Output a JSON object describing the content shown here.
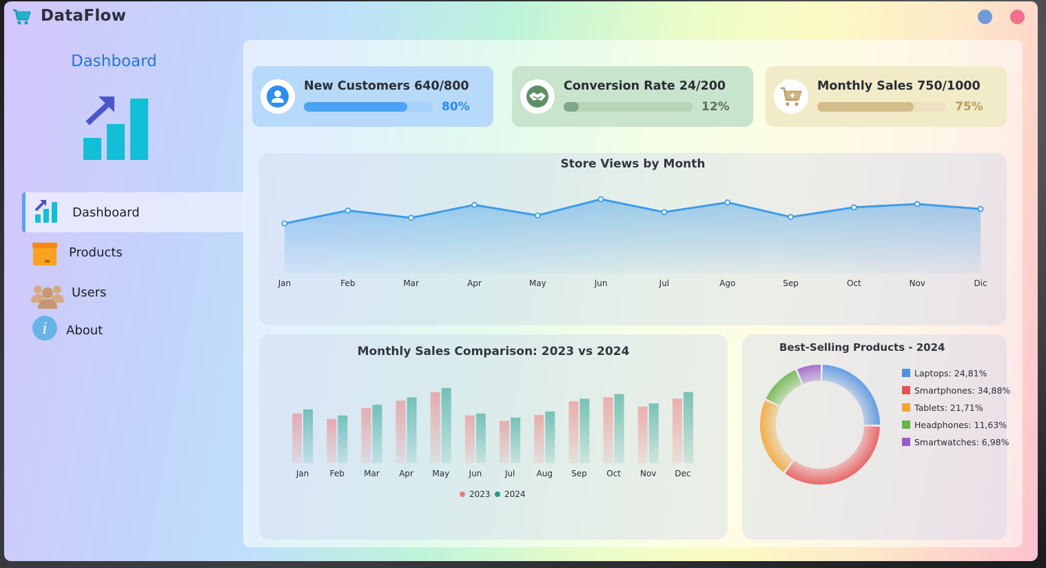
{
  "app": {
    "title": "DataFlow",
    "logo_icon": "cart-icon"
  },
  "sidebar": {
    "heading": "Dashboard",
    "hero_icon": "growth-chart-icon",
    "items": [
      {
        "label": "Dashboard",
        "icon": "chart-icon",
        "active": true
      },
      {
        "label": "Products",
        "icon": "box-icon",
        "active": false
      },
      {
        "label": "Users",
        "icon": "users-icon",
        "active": false
      },
      {
        "label": "About",
        "icon": "info-icon",
        "active": false
      }
    ]
  },
  "kpis": [
    {
      "title": "New Customers 640/800",
      "percent_label": "80%",
      "progress": 0.8,
      "icon": "user-icon",
      "card_color": "#b7d9fa",
      "track_color": "#a8d2fb",
      "fill_color": "#4aa3f4",
      "text_color": "#2b8be8"
    },
    {
      "title": "Conversion Rate 24/200",
      "percent_label": "12%",
      "progress": 0.12,
      "icon": "handshake-icon",
      "card_color": "#c8e4cc",
      "track_color": "#b5d4b8",
      "fill_color": "#7fa686",
      "text_color": "#5a6f5d"
    },
    {
      "title": "Monthly Sales 750/1000",
      "percent_label": "75%",
      "progress": 0.75,
      "icon": "cart-plus-icon",
      "card_color": "#f2ebc8",
      "track_color": "#eee0c0",
      "fill_color": "#d2bd8a",
      "text_color": "#b99b5b"
    }
  ],
  "chart_data": [
    {
      "type": "area",
      "title": "Store Views by Month",
      "categories": [
        "Jan",
        "Feb",
        "Mar",
        "Apr",
        "May",
        "Jun",
        "Jul",
        "Ago",
        "Sep",
        "Oct",
        "Nov",
        "Dic"
      ],
      "values": [
        62,
        78,
        69,
        85,
        72,
        92,
        76,
        88,
        70,
        82,
        86,
        80
      ],
      "ylim": [
        0,
        115
      ],
      "color": "#3d9be9",
      "grid": false
    },
    {
      "type": "bar",
      "title": "Monthly Sales Comparison: 2023 vs 2024",
      "categories": [
        "Jan",
        "Feb",
        "Mar",
        "Apr",
        "May",
        "Jun",
        "Jul",
        "Aug",
        "Sep",
        "Oct",
        "Nov",
        "Dec"
      ],
      "series": [
        {
          "name": "2023",
          "color": "#f07a7a",
          "values": [
            74,
            66,
            82,
            93,
            106,
            71,
            63,
            72,
            92,
            98,
            84,
            96
          ]
        },
        {
          "name": "2024",
          "color": "#1f9e8c",
          "values": [
            80,
            71,
            87,
            98,
            112,
            74,
            68,
            77,
            96,
            103,
            89,
            106
          ]
        }
      ],
      "ylim": [
        0,
        120
      ],
      "legend": "bottom",
      "grid": false
    },
    {
      "type": "pie",
      "title": "Best-Selling Products - 2024",
      "labels": [
        "Laptops: 24,81%",
        "Smartphones: 34,88%",
        "Tablets: 21,71%",
        "Headphones: 11,63%",
        "Smartwatches: 6,98%"
      ],
      "values": [
        24.81,
        34.88,
        21.71,
        11.63,
        6.98
      ],
      "colors": [
        "#4f90e0",
        "#e85252",
        "#f3a432",
        "#68b447",
        "#9a5bc8"
      ],
      "donut": true,
      "legend": "right"
    }
  ]
}
